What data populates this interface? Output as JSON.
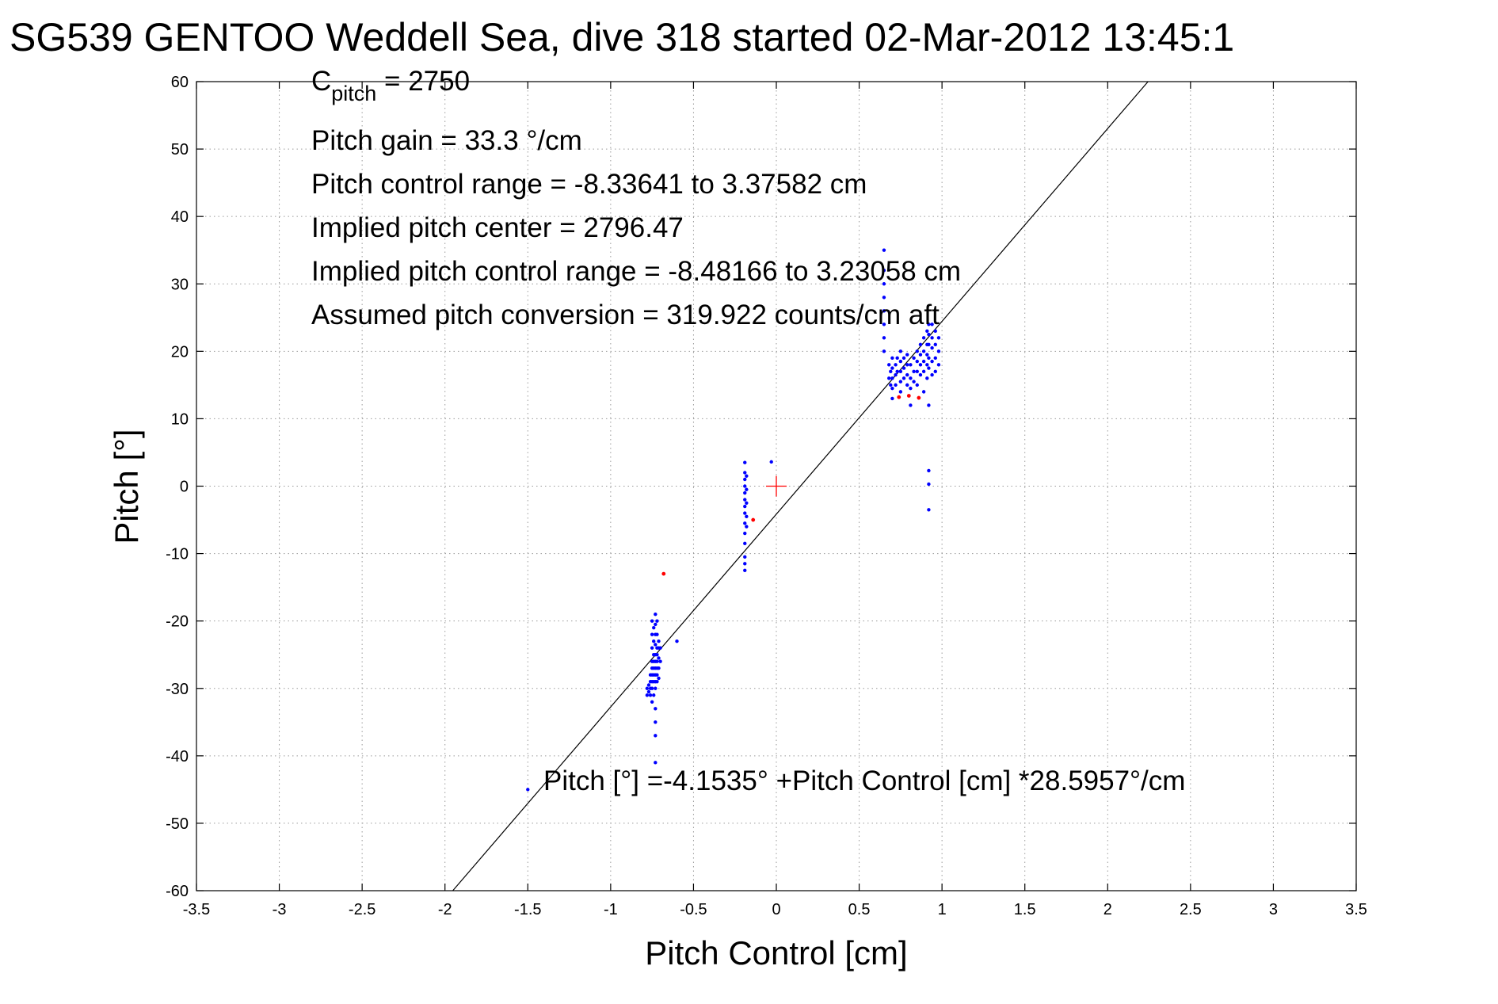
{
  "chart_data": {
    "type": "scatter",
    "title": "SG539 GENTOO Weddell Sea, dive 318 started 02-Mar-2012 13:45:1",
    "xlabel": "Pitch Control [cm]",
    "ylabel": "Pitch [°]",
    "xlim": [
      -3.5,
      3.5
    ],
    "ylim": [
      -60,
      60
    ],
    "grid": true,
    "x_ticks": [
      "-3.5",
      "-3",
      "-2.5",
      "-2",
      "-1.5",
      "-1",
      "-0.5",
      "0",
      "0.5",
      "1",
      "1.5",
      "2",
      "2.5",
      "3",
      "3.5"
    ],
    "y_ticks": [
      "60",
      "50",
      "40",
      "30",
      "20",
      "10",
      "0",
      "-10",
      "-20",
      "-30",
      "-40",
      "-50",
      "-60"
    ],
    "annotations": {
      "cpitch_main": "C",
      "cpitch_sub": "pitch",
      "cpitch_value": " = 2750",
      "gain": "Pitch gain = 33.3 °/cm",
      "control_range": "Pitch control range = -8.33641 to 3.37582 cm",
      "implied_center": "Implied pitch center = 2796.47",
      "implied_range": "Implied pitch control range = -8.48166 to 3.23058 cm",
      "conversion": "Assumed pitch conversion = 319.922 counts/cm aft",
      "fit_equation": "Pitch [°] =-4.1535° +Pitch Control [cm] *28.5957°/cm"
    },
    "fit_line": {
      "intercept": -4.1535,
      "slope": 28.5957
    },
    "center_marker": {
      "x": 0,
      "y": 0,
      "color": "#ff0000"
    },
    "series": [
      {
        "color": "#0000ff",
        "points": [
          [
            -1.5,
            -45
          ],
          [
            -0.6,
            -23
          ],
          [
            -0.03,
            3.6
          ],
          [
            -0.78,
            -31
          ],
          [
            -0.78,
            -30
          ],
          [
            -0.77,
            -29.5
          ],
          [
            -0.77,
            -30.5
          ],
          [
            -0.76,
            -28
          ],
          [
            -0.76,
            -29
          ],
          [
            -0.76,
            -30
          ],
          [
            -0.76,
            -31
          ],
          [
            -0.75,
            -20
          ],
          [
            -0.75,
            -22
          ],
          [
            -0.75,
            -24
          ],
          [
            -0.75,
            -26
          ],
          [
            -0.75,
            -27
          ],
          [
            -0.75,
            -28
          ],
          [
            -0.75,
            -29
          ],
          [
            -0.75,
            -30
          ],
          [
            -0.75,
            -32
          ],
          [
            -0.74,
            -21
          ],
          [
            -0.74,
            -23
          ],
          [
            -0.74,
            -25
          ],
          [
            -0.74,
            -26
          ],
          [
            -0.74,
            -27
          ],
          [
            -0.74,
            -28
          ],
          [
            -0.74,
            -29
          ],
          [
            -0.74,
            -31
          ],
          [
            -0.73,
            -19
          ],
          [
            -0.73,
            -20.5
          ],
          [
            -0.73,
            -22
          ],
          [
            -0.73,
            -23.5
          ],
          [
            -0.73,
            -25
          ],
          [
            -0.73,
            -26
          ],
          [
            -0.73,
            -27
          ],
          [
            -0.73,
            -28
          ],
          [
            -0.73,
            -29
          ],
          [
            -0.73,
            -30
          ],
          [
            -0.73,
            -33
          ],
          [
            -0.73,
            -35
          ],
          [
            -0.73,
            -37
          ],
          [
            -0.73,
            -41
          ],
          [
            -0.72,
            -20
          ],
          [
            -0.72,
            -22
          ],
          [
            -0.72,
            -24
          ],
          [
            -0.72,
            -25
          ],
          [
            -0.72,
            -26
          ],
          [
            -0.72,
            -27
          ],
          [
            -0.72,
            -28
          ],
          [
            -0.72,
            -29
          ],
          [
            -0.71,
            -23
          ],
          [
            -0.71,
            -24
          ],
          [
            -0.71,
            -25.5
          ],
          [
            -0.71,
            -27
          ],
          [
            -0.71,
            -28.5
          ],
          [
            -0.7,
            -24
          ],
          [
            -0.7,
            -26
          ],
          [
            -0.19,
            3.5
          ],
          [
            -0.19,
            2
          ],
          [
            -0.19,
            1
          ],
          [
            -0.19,
            0
          ],
          [
            -0.19,
            -1
          ],
          [
            -0.19,
            -2
          ],
          [
            -0.19,
            -3
          ],
          [
            -0.19,
            -4
          ],
          [
            -0.19,
            -5.5
          ],
          [
            -0.19,
            -7
          ],
          [
            -0.19,
            -8.5
          ],
          [
            -0.19,
            -10.5
          ],
          [
            -0.19,
            -11.5
          ],
          [
            -0.19,
            -12.5
          ],
          [
            -0.18,
            1.5
          ],
          [
            -0.18,
            -0.5
          ],
          [
            -0.18,
            -2.5
          ],
          [
            -0.18,
            -4.5
          ],
          [
            -0.18,
            -6
          ],
          [
            0.65,
            35
          ],
          [
            0.65,
            32
          ],
          [
            0.65,
            30
          ],
          [
            0.65,
            28
          ],
          [
            0.65,
            26
          ],
          [
            0.65,
            24
          ],
          [
            0.65,
            22
          ],
          [
            0.65,
            20
          ],
          [
            0.68,
            18
          ],
          [
            0.68,
            16
          ],
          [
            0.69,
            17
          ],
          [
            0.69,
            15
          ],
          [
            0.7,
            19
          ],
          [
            0.7,
            17.5
          ],
          [
            0.7,
            16
          ],
          [
            0.7,
            14.5
          ],
          [
            0.7,
            13
          ],
          [
            0.72,
            18
          ],
          [
            0.72,
            16.5
          ],
          [
            0.72,
            15
          ],
          [
            0.73,
            19
          ],
          [
            0.73,
            17
          ],
          [
            0.75,
            20
          ],
          [
            0.75,
            18.5
          ],
          [
            0.75,
            17
          ],
          [
            0.75,
            15.5
          ],
          [
            0.75,
            14
          ],
          [
            0.77,
            19
          ],
          [
            0.77,
            17.5
          ],
          [
            0.77,
            16
          ],
          [
            0.79,
            19.5
          ],
          [
            0.79,
            18
          ],
          [
            0.79,
            16.5
          ],
          [
            0.79,
            15
          ],
          [
            0.81,
            12
          ],
          [
            0.81,
            18
          ],
          [
            0.81,
            16
          ],
          [
            0.81,
            14.5
          ],
          [
            0.83,
            19
          ],
          [
            0.83,
            17
          ],
          [
            0.83,
            15.5
          ],
          [
            0.85,
            20
          ],
          [
            0.85,
            18.5
          ],
          [
            0.85,
            17
          ],
          [
            0.85,
            15
          ],
          [
            0.87,
            21
          ],
          [
            0.87,
            19.5
          ],
          [
            0.87,
            18
          ],
          [
            0.87,
            16.5
          ],
          [
            0.89,
            22
          ],
          [
            0.89,
            20
          ],
          [
            0.89,
            18.5
          ],
          [
            0.89,
            17
          ],
          [
            0.89,
            14
          ],
          [
            0.91,
            23
          ],
          [
            0.91,
            21
          ],
          [
            0.91,
            19.5
          ],
          [
            0.91,
            18
          ],
          [
            0.91,
            16
          ],
          [
            0.92,
            24
          ],
          [
            0.92,
            22.5
          ],
          [
            0.92,
            21
          ],
          [
            0.92,
            19
          ],
          [
            0.92,
            17.5
          ],
          [
            0.92,
            12
          ],
          [
            0.92,
            2.3
          ],
          [
            0.92,
            0.3
          ],
          [
            0.92,
            -3.5
          ],
          [
            0.94,
            24
          ],
          [
            0.94,
            22
          ],
          [
            0.94,
            20.5
          ],
          [
            0.94,
            18.5
          ],
          [
            0.94,
            16.5
          ],
          [
            0.96,
            23
          ],
          [
            0.96,
            21
          ],
          [
            0.96,
            19
          ],
          [
            0.96,
            17
          ],
          [
            0.98,
            22
          ],
          [
            0.98,
            20
          ],
          [
            0.98,
            18
          ]
        ]
      },
      {
        "color": "#ff0000",
        "points": [
          [
            -0.68,
            -13
          ],
          [
            -0.14,
            -5
          ],
          [
            0.74,
            13.2
          ],
          [
            0.8,
            13.4
          ],
          [
            0.86,
            13.1
          ]
        ]
      }
    ]
  }
}
